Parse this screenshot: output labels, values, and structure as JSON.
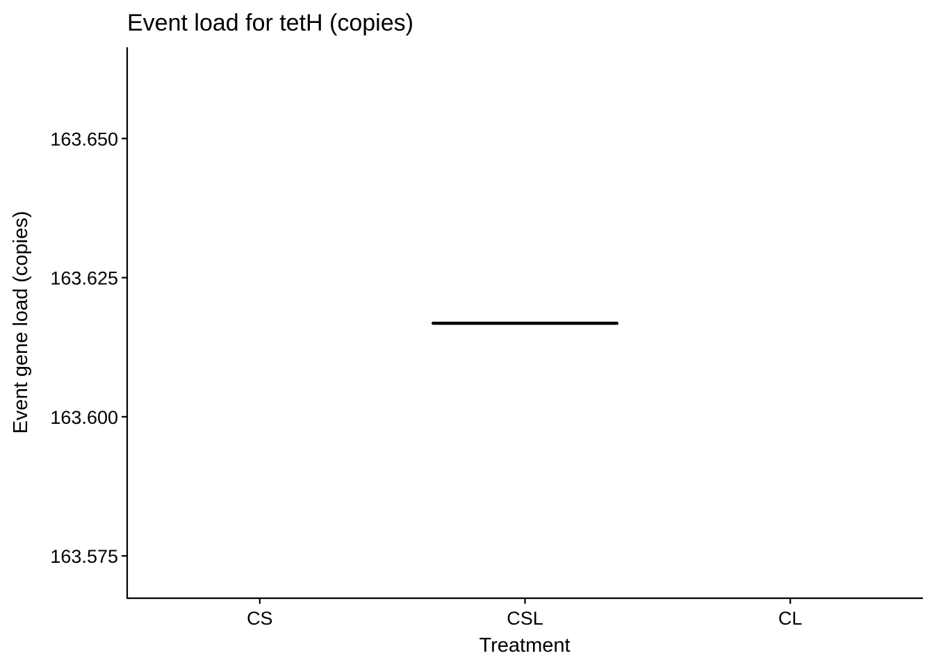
{
  "chart_data": {
    "type": "box",
    "title": "Event load for tetH (copies)",
    "xlabel": "Treatment",
    "ylabel": "Event gene load (copies)",
    "categories": [
      "CS",
      "CSL",
      "CL"
    ],
    "y_ticks": [
      "163.575",
      "163.600",
      "163.625",
      "163.650"
    ],
    "ylim": [
      163.5674,
      163.6664
    ],
    "boxes": [
      {
        "category": "CSL",
        "min": 163.6168,
        "q1": 163.6168,
        "median": 163.6168,
        "q3": 163.6168,
        "max": 163.6168
      }
    ],
    "grid": false,
    "legend": "none",
    "colors": {
      "box": "#000000",
      "axis": "#000000"
    }
  }
}
